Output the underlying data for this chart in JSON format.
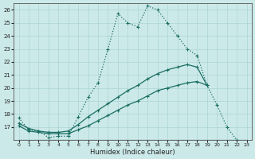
{
  "xlabel": "Humidex (Indice chaleur)",
  "bg_color": "#cce9e9",
  "grid_color": "#aad4d4",
  "line_color": "#1a6e62",
  "xlim": [
    -0.5,
    23.5
  ],
  "ylim": [
    16,
    26.5
  ],
  "yticks": [
    17,
    18,
    19,
    20,
    21,
    22,
    23,
    24,
    25,
    26
  ],
  "xticks": [
    0,
    1,
    2,
    3,
    4,
    5,
    6,
    7,
    8,
    9,
    10,
    11,
    12,
    13,
    14,
    15,
    16,
    17,
    18,
    19,
    20,
    21,
    22,
    23
  ],
  "line1_x": [
    0,
    1,
    2,
    3,
    4,
    5,
    6,
    7,
    8,
    9,
    10,
    11,
    12,
    13,
    14,
    15,
    16,
    17,
    18,
    19,
    20,
    21,
    22,
    23
  ],
  "line1_y": [
    17.7,
    16.8,
    16.7,
    16.2,
    16.3,
    16.3,
    17.8,
    19.3,
    20.4,
    23.0,
    25.7,
    25.0,
    24.7,
    26.3,
    26.0,
    25.0,
    24.0,
    23.0,
    22.5,
    20.2,
    18.7,
    17.0,
    16.0,
    null
  ],
  "line2_x": [
    0,
    1,
    2,
    3,
    4,
    5,
    6,
    7,
    8,
    9,
    10,
    11,
    12,
    13,
    14,
    15,
    16,
    17,
    18,
    19,
    20,
    21,
    22,
    23
  ],
  "line2_y": [
    17.3,
    16.9,
    16.7,
    16.6,
    16.6,
    16.7,
    17.2,
    17.8,
    18.3,
    18.8,
    19.3,
    19.8,
    20.2,
    20.7,
    21.1,
    21.4,
    21.6,
    21.8,
    21.6,
    20.2,
    null,
    null,
    null,
    null
  ],
  "line3_x": [
    0,
    1,
    2,
    3,
    4,
    5,
    6,
    7,
    8,
    9,
    10,
    11,
    12,
    13,
    14,
    15,
    16,
    17,
    18,
    19,
    20,
    21,
    22,
    23
  ],
  "line3_y": [
    16.0,
    16.0,
    16.0,
    16.0,
    16.0,
    16.0,
    16.0,
    16.0,
    16.0,
    16.0,
    16.0,
    16.0,
    16.0,
    16.0,
    16.0,
    16.0,
    16.0,
    16.0,
    16.0,
    16.0,
    16.0,
    16.0,
    16.0,
    16.0
  ],
  "line4_x": [
    0,
    1,
    2,
    3,
    4,
    5,
    6,
    7,
    8,
    9,
    10,
    11,
    12,
    13,
    14,
    15,
    16,
    17,
    18,
    19,
    20,
    21,
    22,
    23
  ],
  "line4_y": [
    17.1,
    16.7,
    16.6,
    16.5,
    16.5,
    16.5,
    16.8,
    17.1,
    17.5,
    17.9,
    18.3,
    18.7,
    19.0,
    19.4,
    19.8,
    20.0,
    20.2,
    20.4,
    20.5,
    20.2,
    null,
    null,
    null,
    null
  ]
}
